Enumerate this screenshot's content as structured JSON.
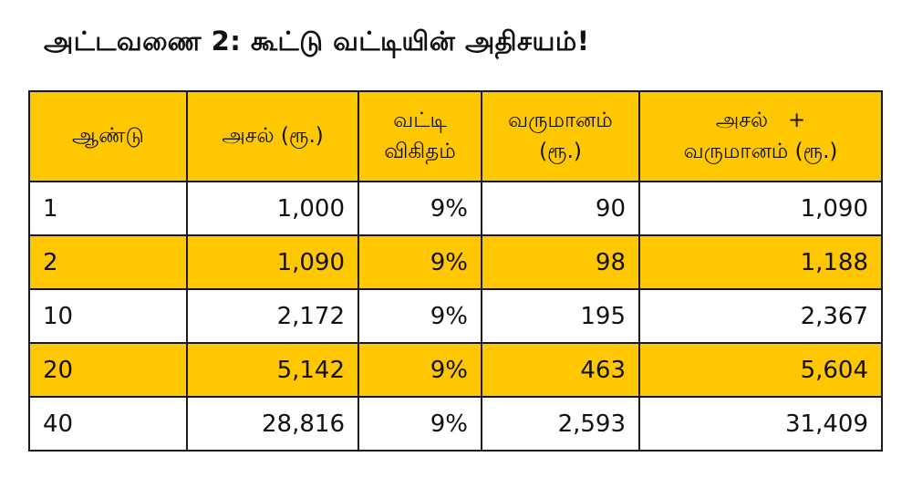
{
  "title": "அட்டவணை 2: கூட்டு வட்டியின் அதிசயம்!",
  "table": {
    "headers": [
      [
        "ஆண்டு"
      ],
      [
        "அசல் (ரூ.)"
      ],
      [
        "வட்டி",
        "விகிதம்"
      ],
      [
        "வருமானம்",
        "(ரூ.)"
      ],
      [
        "அசல்   +",
        "வருமானம் (ரூ.)"
      ]
    ],
    "rows": [
      [
        "1",
        "1,000",
        "9%",
        "90",
        "1,090"
      ],
      [
        "2",
        "1,090",
        "9%",
        "98",
        "1,188"
      ],
      [
        "10",
        "2,172",
        "9%",
        "195",
        "2,367"
      ],
      [
        "20",
        "5,142",
        "9%",
        "463",
        "5,604"
      ],
      [
        "40",
        "28,816",
        "9%",
        "2,593",
        "31,409"
      ]
    ]
  },
  "colors": {
    "highlight": "#ffc700",
    "border": "#1a1a1a",
    "background": "#ffffff"
  }
}
